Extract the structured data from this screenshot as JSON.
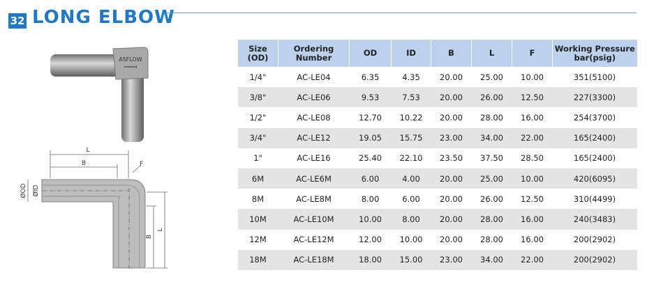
{
  "header": {
    "number": "32",
    "title": "LONG ELBOW"
  },
  "product": {
    "brand": "ASFLOW"
  },
  "drawing": {
    "length_top": "L",
    "b_top": "B",
    "f": "F",
    "od": "ØOD",
    "id": "ØID",
    "b_side": "B",
    "length_side": "L"
  },
  "table": {
    "headers": [
      "Size\n(OD)",
      "Ordering\nNumber",
      "OD",
      "ID",
      "B",
      "L",
      "F",
      "Working Pressure\nbar(psig)"
    ],
    "rows": [
      [
        "1/4\"",
        "AC-LE04",
        "6.35",
        "4.35",
        "20.00",
        "25.00",
        "10.00",
        "351(5100)"
      ],
      [
        "3/8\"",
        "AC-LE06",
        "9.53",
        "7.53",
        "20.00",
        "26.00",
        "12.50",
        "227(3300)"
      ],
      [
        "1/2\"",
        "AC-LE08",
        "12.70",
        "10.22",
        "20.00",
        "28.00",
        "16.00",
        "254(3700)"
      ],
      [
        "3/4\"",
        "AC-LE12",
        "19.05",
        "15.75",
        "23.00",
        "34.00",
        "22.00",
        "165(2400)"
      ],
      [
        "1\"",
        "AC-LE16",
        "25.40",
        "22.10",
        "23.50",
        "37.50",
        "28.50",
        "165(2400)"
      ],
      [
        "6M",
        "AC-LE6M",
        "6.00",
        "4.00",
        "20.00",
        "25.00",
        "10.00",
        "420(6095)"
      ],
      [
        "8M",
        "AC-LE8M",
        "8.00",
        "6.00",
        "20.00",
        "26.00",
        "12.50",
        "310(4499)"
      ],
      [
        "10M",
        "AC-LE10M",
        "10.00",
        "8.00",
        "20.00",
        "28.00",
        "16.00",
        "240(3483)"
      ],
      [
        "12M",
        "AC-LE12M",
        "12.00",
        "10.00",
        "20.00",
        "28.00",
        "16.00",
        "200(2902)"
      ],
      [
        "18M",
        "AC-LE18M",
        "18.00",
        "15.00",
        "23.00",
        "34.00",
        "22.00",
        "200(2902)"
      ]
    ]
  }
}
